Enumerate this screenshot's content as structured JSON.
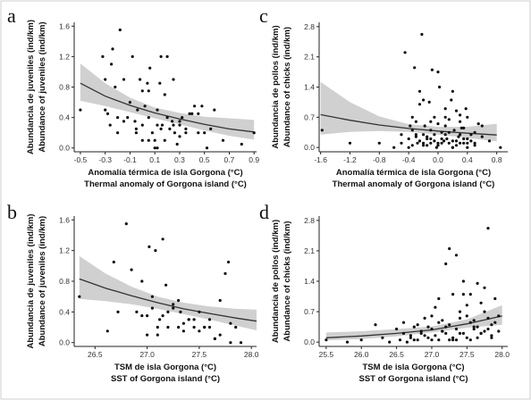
{
  "chart_data": [
    {
      "type": "scatter",
      "panel": "a",
      "xlabel_es": "Anomalía térmica de isla Gorgona (°C)",
      "xlabel_en": "Thermal anomaly of Gorgona island (°C)",
      "ylabel_es": "Abundancia de juveniles (ind/km)",
      "ylabel_en": "Abundance of juveniles (ind/km)",
      "xlim": [
        -0.55,
        0.92
      ],
      "ylim": [
        -0.05,
        1.65
      ],
      "xticks": [
        "-0.5",
        "-0.3",
        "-0.1",
        "0.1",
        "0.3",
        "0.5",
        "0.7",
        "0.9"
      ],
      "yticks": [
        "0.0",
        "0.4",
        "0.8",
        "1.2",
        "1.6"
      ],
      "fit": {
        "x": [
          -0.5,
          -0.3,
          -0.1,
          0.1,
          0.3,
          0.5,
          0.7,
          0.9
        ],
        "y": [
          0.85,
          0.68,
          0.56,
          0.46,
          0.38,
          0.31,
          0.25,
          0.21
        ],
        "lower": [
          0.62,
          0.55,
          0.47,
          0.39,
          0.31,
          0.23,
          0.16,
          0.11
        ],
        "upper": [
          1.11,
          0.85,
          0.66,
          0.53,
          0.46,
          0.41,
          0.39,
          0.37
        ]
      },
      "points": {
        "x": [
          -0.5,
          -0.32,
          -0.3,
          -0.28,
          -0.26,
          -0.25,
          -0.24,
          -0.22,
          -0.2,
          -0.18,
          -0.15,
          -0.12,
          -0.1,
          -0.08,
          -0.06,
          -0.05,
          -0.04,
          -0.02,
          0.0,
          0.0,
          0.02,
          0.04,
          0.05,
          0.06,
          0.08,
          0.1,
          0.12,
          0.12,
          0.14,
          0.15,
          0.16,
          0.18,
          0.2,
          0.22,
          0.24,
          0.25,
          0.26,
          0.28,
          0.3,
          0.3,
          0.32,
          0.35,
          0.38,
          0.4,
          0.42,
          0.45,
          0.48,
          0.5,
          0.52,
          0.55,
          0.58,
          0.65,
          0.8,
          0.9,
          -0.3,
          -0.15,
          -0.05,
          0.05,
          0.15,
          0.25,
          0.35,
          0.45,
          0.1,
          0.2,
          0.0,
          -0.2,
          0.3,
          0.12,
          0.05,
          0.18
        ],
        "y": [
          0.5,
          1.2,
          0.5,
          0.45,
          0.3,
          1.1,
          1.3,
          0.8,
          0.2,
          1.55,
          0.9,
          0.4,
          0.6,
          1.2,
          0.35,
          0.2,
          0.5,
          0.9,
          0.1,
          0.3,
          0.55,
          0.85,
          0.4,
          1.05,
          0.2,
          0.0,
          0.5,
          0.3,
          0.85,
          1.2,
          0.3,
          0.1,
          1.2,
          0.25,
          0.35,
          0.3,
          0.2,
          0.05,
          0.3,
          0.15,
          0.4,
          0.2,
          0.45,
          0.45,
          0.55,
          0.2,
          0.55,
          0.2,
          0.0,
          0.25,
          0.5,
          0.1,
          0.05,
          0.2,
          0.9,
          0.35,
          0.25,
          0.75,
          0.25,
          0.9,
          0.25,
          0.45,
          0.1,
          0.4,
          0.75,
          0.4,
          0.35,
          0.0,
          0.1,
          0.7
        ]
      }
    },
    {
      "type": "scatter",
      "panel": "b",
      "xlabel_es": "TSM de isla Gorgona (°C)",
      "xlabel_en": "SST of Gorgona island (°C)",
      "ylabel_es": "Abundancia de juveniles (ind/km)",
      "ylabel_en": "Abundance of juveniles (ind/km)",
      "xlim": [
        26.3,
        28.05
      ],
      "ylim": [
        -0.05,
        1.65
      ],
      "xticks": [
        "26.5",
        "27.0",
        "27.5",
        "28.0"
      ],
      "yticks": [
        "0.0",
        "0.4",
        "0.8",
        "1.2",
        "1.6"
      ],
      "fit": {
        "x": [
          26.35,
          26.6,
          26.85,
          27.1,
          27.35,
          27.6,
          27.85,
          28.05
        ],
        "y": [
          0.83,
          0.71,
          0.61,
          0.52,
          0.44,
          0.38,
          0.32,
          0.28
        ],
        "lower": [
          0.57,
          0.54,
          0.5,
          0.44,
          0.37,
          0.3,
          0.22,
          0.16
        ],
        "upper": [
          1.13,
          0.9,
          0.73,
          0.6,
          0.52,
          0.47,
          0.44,
          0.43
        ]
      },
      "points": {
        "x": [
          26.35,
          26.62,
          26.68,
          26.72,
          26.8,
          26.85,
          26.9,
          26.95,
          27.0,
          27.02,
          27.05,
          27.08,
          27.1,
          27.12,
          27.15,
          27.18,
          27.2,
          27.25,
          27.3,
          27.32,
          27.35,
          27.4,
          27.45,
          27.5,
          27.55,
          27.6,
          27.65,
          27.7,
          27.75,
          27.78,
          27.8,
          27.85,
          27.9,
          26.95,
          27.05,
          27.15,
          27.25,
          27.35,
          27.45,
          27.55,
          27.65,
          27.0,
          27.1,
          27.2,
          27.3,
          27.4,
          27.5,
          27.6,
          27.7,
          27.8
        ],
        "y": [
          0.6,
          0.15,
          1.05,
          0.4,
          1.55,
          0.95,
          0.4,
          0.35,
          0.1,
          1.25,
          0.6,
          1.2,
          0.2,
          0.3,
          1.35,
          0.75,
          0.2,
          0.5,
          0.55,
          0.4,
          0.15,
          0.3,
          0.2,
          0.4,
          0.2,
          0.3,
          0.05,
          0.55,
          0.9,
          1.05,
          0.25,
          0.2,
          0.0,
          0.8,
          0.45,
          0.35,
          0.45,
          0.25,
          0.3,
          0.2,
          0.05,
          0.35,
          0.1,
          0.4,
          0.2,
          0.3,
          0.15,
          0.2,
          0.1,
          0.0
        ]
      }
    },
    {
      "type": "scatter",
      "panel": "c",
      "xlabel_es": "Anomalía térmica de isla Gorgona (°C)",
      "xlabel_en": "Thermal anomaly of Gorgona island (°C)",
      "ylabel_es": "Abundancia de pollos (ind/km)",
      "ylabel_en": "Abundance of chicks (ind/km)",
      "xlim": [
        -1.62,
        0.95
      ],
      "ylim": [
        -0.1,
        2.9
      ],
      "xticks": [
        "-1.6",
        "-1.2",
        "-0.8",
        "-0.4",
        "0.0",
        "0.4",
        "0.8"
      ],
      "yticks": [
        "0.0",
        "0.7",
        "1.4",
        "2.1",
        "2.8"
      ],
      "fit": {
        "x": [
          -1.6,
          -1.2,
          -0.8,
          -0.4,
          0.0,
          0.4,
          0.8
        ],
        "y": [
          0.76,
          0.63,
          0.52,
          0.44,
          0.38,
          0.33,
          0.29
        ],
        "lower": [
          0.3,
          0.36,
          0.38,
          0.36,
          0.3,
          0.22,
          0.14
        ],
        "upper": [
          1.52,
          1.05,
          0.72,
          0.54,
          0.48,
          0.48,
          0.55
        ]
      },
      "points": {
        "x": [
          -1.58,
          -1.2,
          -0.8,
          -0.6,
          -0.5,
          -0.45,
          -0.4,
          -0.38,
          -0.35,
          -0.32,
          -0.3,
          -0.28,
          -0.25,
          -0.22,
          -0.2,
          -0.18,
          -0.15,
          -0.12,
          -0.1,
          -0.08,
          -0.05,
          -0.02,
          0.0,
          0.02,
          0.05,
          0.08,
          0.1,
          0.12,
          0.15,
          0.18,
          0.2,
          0.22,
          0.25,
          0.28,
          0.3,
          0.32,
          0.35,
          0.38,
          0.4,
          0.45,
          0.5,
          0.55,
          0.6,
          0.7,
          0.85,
          -0.35,
          -0.3,
          -0.25,
          -0.2,
          -0.15,
          -0.1,
          -0.05,
          0.0,
          0.05,
          0.1,
          0.15,
          0.2,
          0.25,
          0.3,
          0.35,
          0.4,
          -0.4,
          -0.2,
          0.0,
          0.2,
          0.4,
          -0.3,
          -0.1,
          0.1,
          0.3,
          0.5,
          -0.5,
          0.6,
          -0.25,
          -0.05,
          0.15,
          0.35,
          0.45,
          -0.15,
          0.05,
          0.25,
          -0.35,
          0.0,
          0.2,
          -0.2,
          0.1,
          0.3,
          0.5,
          -0.1,
          0.4
        ],
        "y": [
          0.4,
          0.1,
          0.1,
          0.0,
          0.1,
          2.2,
          0.2,
          0.5,
          0.7,
          1.85,
          0.3,
          0.1,
          1.3,
          2.62,
          0.1,
          0.5,
          0.2,
          1.05,
          0.1,
          1.8,
          0.3,
          0.0,
          0.55,
          1.4,
          0.1,
          0.15,
          0.7,
          0.2,
          0.35,
          1.1,
          0.0,
          0.4,
          0.15,
          0.25,
          0.1,
          0.45,
          0.2,
          0.9,
          0.0,
          0.3,
          0.1,
          0.55,
          0.25,
          0.15,
          0.0,
          0.05,
          0.25,
          0.15,
          0.3,
          0.05,
          0.2,
          0.15,
          0.05,
          0.2,
          0.3,
          0.1,
          0.15,
          0.05,
          0.3,
          0.1,
          0.2,
          0.0,
          0.05,
          0.1,
          0.0,
          0.1,
          0.6,
          0.4,
          0.5,
          0.6,
          0.35,
          0.3,
          0.5,
          1.0,
          0.7,
          0.65,
          0.45,
          0.15,
          0.25,
          0.35,
          0.85,
          0.4,
          1.75,
          1.3,
          1.1,
          0.9,
          0.75,
          0.05,
          0.6,
          0.7
        ]
      }
    },
    {
      "type": "scatter",
      "panel": "d",
      "xlabel_es": "TSM de isla Gorgona (°C)",
      "xlabel_en": "SST of Gorgona island (°C)",
      "ylabel_es": "Abundancia de pollos (ind/km)",
      "ylabel_en": "Abundance of chicks (ind/km)",
      "xlim": [
        25.4,
        28.08
      ],
      "ylim": [
        -0.1,
        2.9
      ],
      "xticks": [
        "25.5",
        "26.0",
        "26.5",
        "27.0",
        "27.5",
        "28.0"
      ],
      "yticks": [
        "0.0",
        "0.7",
        "1.4",
        "2.1",
        "2.8"
      ],
      "fit": {
        "x": [
          25.5,
          26.0,
          26.5,
          27.0,
          27.5,
          28.0
        ],
        "y": [
          0.1,
          0.14,
          0.2,
          0.28,
          0.42,
          0.6
        ],
        "lower": [
          0.04,
          0.07,
          0.13,
          0.22,
          0.33,
          0.4
        ],
        "upper": [
          0.22,
          0.25,
          0.3,
          0.36,
          0.52,
          0.85
        ]
      },
      "points": {
        "x": [
          25.5,
          25.8,
          26.0,
          26.2,
          26.3,
          26.4,
          26.5,
          26.55,
          26.6,
          26.65,
          26.7,
          26.75,
          26.8,
          26.85,
          26.9,
          26.95,
          27.0,
          27.05,
          27.1,
          27.15,
          27.2,
          27.25,
          27.3,
          27.35,
          27.4,
          27.45,
          27.5,
          27.55,
          27.6,
          27.65,
          27.7,
          27.75,
          27.8,
          27.85,
          27.9,
          27.95,
          26.6,
          26.7,
          26.8,
          26.9,
          27.0,
          27.1,
          27.2,
          27.3,
          27.4,
          27.5,
          27.6,
          27.7,
          27.8,
          26.75,
          26.85,
          26.95,
          27.05,
          27.15,
          27.25,
          27.35,
          27.45,
          27.55,
          27.65,
          27.75,
          27.85,
          27.0,
          27.2,
          27.4,
          27.6,
          27.8,
          27.1,
          27.3,
          27.5,
          27.7,
          27.9,
          27.25,
          27.45,
          27.65,
          27.85,
          27.55,
          27.75,
          27.95,
          27.15,
          27.35
        ],
        "y": [
          0.05,
          0.0,
          0.05,
          0.4,
          0.1,
          0.0,
          0.3,
          0.05,
          0.45,
          0.0,
          0.15,
          0.35,
          0.05,
          0.2,
          0.55,
          0.1,
          0.3,
          0.8,
          0.05,
          0.25,
          1.8,
          0.4,
          0.1,
          2.0,
          0.2,
          1.1,
          0.6,
          0.05,
          0.3,
          1.35,
          0.2,
          0.7,
          2.62,
          0.1,
          1.0,
          0.25,
          0.2,
          0.1,
          0.4,
          0.15,
          0.05,
          0.45,
          0.2,
          0.05,
          0.55,
          0.1,
          0.35,
          0.2,
          0.3,
          0.05,
          0.25,
          0.35,
          0.15,
          0.5,
          0.05,
          0.3,
          0.2,
          0.45,
          0.1,
          0.25,
          0.4,
          0.6,
          0.35,
          0.7,
          0.5,
          0.55,
          1.0,
          1.1,
          0.85,
          0.9,
          0.45,
          2.15,
          1.4,
          0.35,
          0.15,
          1.1,
          1.25,
          0.6,
          0.25,
          0.05
        ]
      }
    }
  ]
}
